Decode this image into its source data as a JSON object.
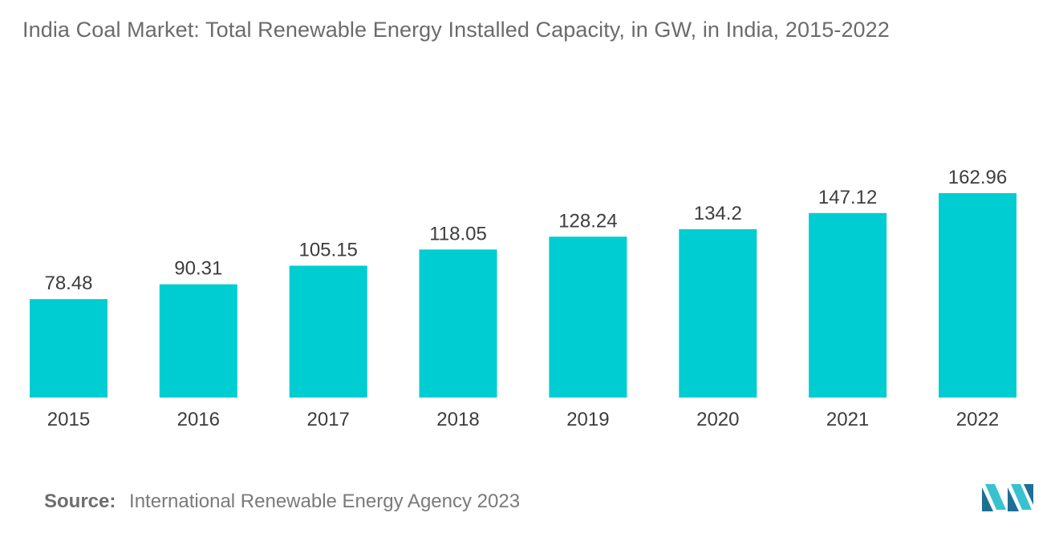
{
  "title": "India Coal Market: Total Renewable Energy  Installed Capacity, in GW, in India, 2015-2022",
  "source": {
    "label": "Source:",
    "text": "International Renewable Energy Agency 2023"
  },
  "colors": {
    "bar": "#00cdd2",
    "label_text": "#3d3d3d",
    "title_text": "#6b6b6b",
    "logo_dark": "#1d6f95",
    "logo_light": "#38c2cf"
  },
  "chart_data": {
    "type": "bar",
    "categories": [
      "2015",
      "2016",
      "2017",
      "2018",
      "2019",
      "2020",
      "2021",
      "2022"
    ],
    "series": [
      {
        "values": [
          78.48,
          90.31,
          105.15,
          118.05,
          128.24,
          134.2,
          147.12,
          162.96
        ],
        "labels": [
          "78.48",
          "90.31",
          "105.15",
          "118.05",
          "128.24",
          "134.2",
          "147.12",
          "162.96"
        ]
      }
    ],
    "xlabel": "",
    "ylabel": "",
    "ylim": [
      0,
      162.96
    ],
    "grid": false,
    "data_labels": true
  }
}
